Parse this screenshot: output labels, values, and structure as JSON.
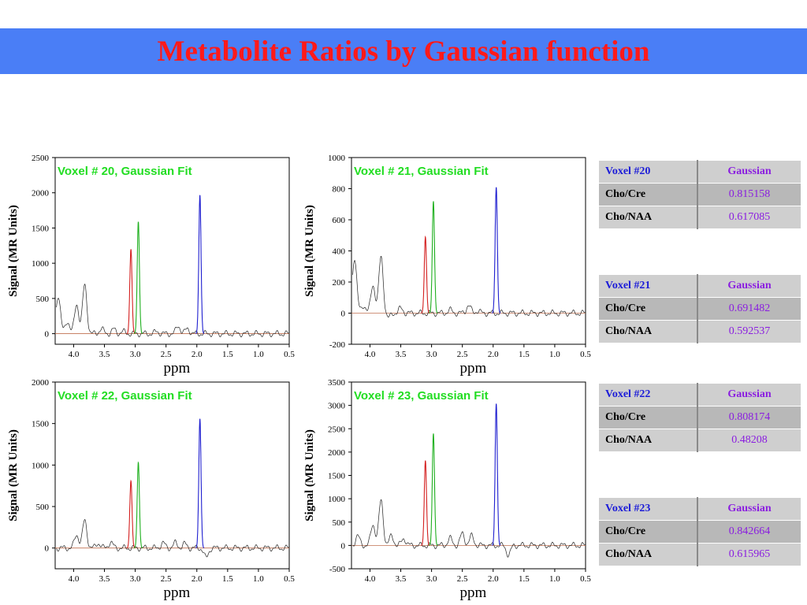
{
  "title": "Metabolite Ratios by Gaussian function",
  "colors": {
    "banner_bg": "#4a7ef6",
    "title": "#ff1a1a",
    "chart_title": "#22dd22",
    "spectrum": "#222222",
    "cho_peak": "#d42020",
    "cre_peak": "#20b020",
    "naa_peak": "#2020d0"
  },
  "chart_data": [
    {
      "type": "line",
      "title": "Voxel # 20, Gaussian Fit",
      "xlabel": "ppm",
      "ylabel": "Signal (MR Units)",
      "xlim": [
        4.3,
        0.5
      ],
      "ylim": [
        -150,
        2500
      ],
      "x_ticks": [
        "4.0",
        "3.5",
        "3.0",
        "2.5",
        "2.0",
        "1.5",
        "1.0",
        "0.5"
      ],
      "y_ticks": [
        "0",
        "500",
        "1000",
        "1500",
        "2000",
        "2500"
      ],
      "peaks": [
        {
          "ppm": 4.25,
          "height": 550
        },
        {
          "ppm": 4.1,
          "height": 180
        },
        {
          "ppm": 3.95,
          "height": 420
        },
        {
          "ppm": 3.82,
          "height": 690
        },
        {
          "ppm": 3.55,
          "height": 70
        },
        {
          "ppm": 3.35,
          "height": 60
        },
        {
          "ppm": 3.2,
          "height": 30
        },
        {
          "ppm": 2.65,
          "height": 30
        },
        {
          "ppm": 2.3,
          "height": 110
        },
        {
          "ppm": 2.15,
          "height": 70
        }
      ],
      "cho": {
        "ppm": 3.07,
        "height": 1200
      },
      "cre": {
        "ppm": 2.95,
        "height": 1590
      },
      "naa": {
        "ppm": 1.95,
        "height": 1970
      }
    },
    {
      "type": "line",
      "title": "Voxel # 21, Gaussian Fit",
      "xlabel": "ppm",
      "ylabel": "Signal (MR Units)",
      "xlim": [
        4.3,
        0.5
      ],
      "ylim": [
        -200,
        1000
      ],
      "x_ticks": [
        "4.0",
        "3.5",
        "3.0",
        "2.5",
        "2.0",
        "1.5",
        "1.0",
        "0.5"
      ],
      "y_ticks": [
        "-200",
        "0",
        "200",
        "400",
        "600",
        "800",
        "1000"
      ],
      "peaks": [
        {
          "ppm": 4.25,
          "height": 360
        },
        {
          "ppm": 4.1,
          "height": 50
        },
        {
          "ppm": 3.95,
          "height": 180
        },
        {
          "ppm": 3.82,
          "height": 360
        },
        {
          "ppm": 3.7,
          "height": -30
        },
        {
          "ppm": 3.5,
          "height": 30
        },
        {
          "ppm": 2.7,
          "height": 20
        },
        {
          "ppm": 2.4,
          "height": 50
        },
        {
          "ppm": 2.25,
          "height": 15
        }
      ],
      "cho": {
        "ppm": 3.1,
        "height": 490
      },
      "cre": {
        "ppm": 2.97,
        "height": 720
      },
      "naa": {
        "ppm": 1.95,
        "height": 810
      }
    },
    {
      "type": "line",
      "title": "Voxel # 22, Gaussian Fit",
      "xlabel": "ppm",
      "ylabel": "Signal (MR Units)",
      "xlim": [
        4.3,
        0.5
      ],
      "ylim": [
        -250,
        2000
      ],
      "x_ticks": [
        "4.0",
        "3.5",
        "3.0",
        "2.5",
        "2.0",
        "1.5",
        "1.0",
        "0.5"
      ],
      "y_ticks": [
        "0",
        "500",
        "1000",
        "1500",
        "2000"
      ],
      "peaks": [
        {
          "ppm": 3.95,
          "height": 160
        },
        {
          "ppm": 3.82,
          "height": 330
        },
        {
          "ppm": 3.6,
          "height": 60
        },
        {
          "ppm": 3.4,
          "height": 70
        },
        {
          "ppm": 2.55,
          "height": 60
        },
        {
          "ppm": 2.35,
          "height": 60
        },
        {
          "ppm": 2.2,
          "height": 50
        },
        {
          "ppm": 1.85,
          "height": -120
        }
      ],
      "cho": {
        "ppm": 3.07,
        "height": 810
      },
      "cre": {
        "ppm": 2.95,
        "height": 1030
      },
      "naa": {
        "ppm": 1.95,
        "height": 1560
      }
    },
    {
      "type": "line",
      "title": "Voxel # 23, Gaussian Fit",
      "xlabel": "ppm",
      "ylabel": "Signal (MR Units)",
      "xlim": [
        4.3,
        0.5
      ],
      "ylim": [
        -500,
        3500
      ],
      "x_ticks": [
        "4.0",
        "3.5",
        "3.0",
        "2.5",
        "2.0",
        "1.5",
        "1.0",
        "0.5"
      ],
      "y_ticks": [
        "-500",
        "0",
        "500",
        "1000",
        "1500",
        "2000",
        "2500",
        "3000",
        "3500"
      ],
      "peaks": [
        {
          "ppm": 4.2,
          "height": 200
        },
        {
          "ppm": 3.95,
          "height": 450
        },
        {
          "ppm": 3.82,
          "height": 960
        },
        {
          "ppm": 3.65,
          "height": 200
        },
        {
          "ppm": 3.45,
          "height": 150
        },
        {
          "ppm": 2.7,
          "height": 150
        },
        {
          "ppm": 2.5,
          "height": 250
        },
        {
          "ppm": 2.35,
          "height": 200
        },
        {
          "ppm": 1.75,
          "height": -200
        }
      ],
      "cho": {
        "ppm": 3.1,
        "height": 1820
      },
      "cre": {
        "ppm": 2.97,
        "height": 2400
      },
      "naa": {
        "ppm": 1.95,
        "height": 3040
      }
    }
  ],
  "tables": [
    {
      "voxel": "Voxel #20",
      "method": "Gaussian",
      "rows": [
        {
          "label": "Cho/Cre",
          "value": "0.815158"
        },
        {
          "label": "Cho/NAA",
          "value": "0.617085"
        }
      ]
    },
    {
      "voxel": "Voxel #21",
      "method": "Gaussian",
      "rows": [
        {
          "label": "Cho/Cre",
          "value": "0.691482"
        },
        {
          "label": "Cho/NAA",
          "value": "0.592537"
        }
      ]
    },
    {
      "voxel": "Voxel #22",
      "method": "Gaussian",
      "rows": [
        {
          "label": "Cho/Cre",
          "value": "0.808174"
        },
        {
          "label": "Cho/NAA",
          "value": "0.48208"
        }
      ]
    },
    {
      "voxel": "Voxel #23",
      "method": "Gaussian",
      "rows": [
        {
          "label": "Cho/Cre",
          "value": "0.842664"
        },
        {
          "label": "Cho/NAA",
          "value": "0.615965"
        }
      ]
    }
  ]
}
